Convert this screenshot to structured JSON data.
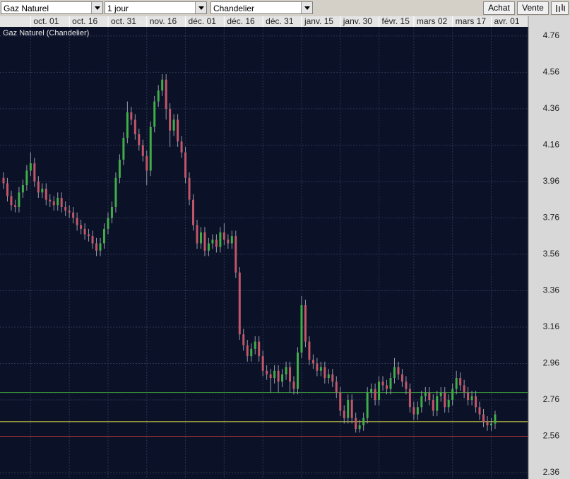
{
  "toolbar": {
    "instrument": "Gaz Naturel",
    "period": "1 jour",
    "chart_style": "Chandelier",
    "buy": "Achat",
    "sell": "Vente"
  },
  "chart_data": {
    "type": "candlestick",
    "title": "Gaz Naturel (Chandelier)",
    "categories": [
      null,
      null,
      null,
      null,
      null,
      null,
      null,
      "oct. 01",
      null,
      null,
      null,
      null,
      null,
      null,
      null,
      null,
      null,
      "oct. 16",
      null,
      null,
      null,
      null,
      null,
      null,
      null,
      null,
      null,
      "oct. 31",
      null,
      null,
      null,
      null,
      null,
      null,
      null,
      null,
      null,
      "nov. 16",
      null,
      null,
      null,
      null,
      null,
      null,
      null,
      null,
      null,
      "déc. 01",
      null,
      null,
      null,
      null,
      null,
      null,
      null,
      null,
      null,
      "déc. 16",
      null,
      null,
      null,
      null,
      null,
      null,
      null,
      null,
      null,
      "déc. 31",
      null,
      null,
      null,
      null,
      null,
      null,
      null,
      null,
      null,
      "janv. 15",
      null,
      null,
      null,
      null,
      null,
      null,
      null,
      null,
      null,
      "janv. 30",
      null,
      null,
      null,
      null,
      null,
      null,
      null,
      null,
      null,
      "févr. 15",
      null,
      null,
      null,
      null,
      null,
      null,
      null,
      null,
      "mars 02",
      null,
      null,
      null,
      null,
      null,
      null,
      null,
      null,
      null,
      "mars 17",
      null,
      null,
      null,
      null,
      null,
      null,
      null,
      null,
      null,
      "avr. 01",
      null
    ],
    "open": [
      3.98,
      3.95,
      3.88,
      3.83,
      3.82,
      3.9,
      3.94,
      4.02,
      4.06,
      3.96,
      3.9,
      3.92,
      3.86,
      3.85,
      3.83,
      3.87,
      3.82,
      3.8,
      3.79,
      3.76,
      3.72,
      3.7,
      3.67,
      3.66,
      3.62,
      3.58,
      3.62,
      3.7,
      3.76,
      3.82,
      3.98,
      4.08,
      4.2,
      4.34,
      4.3,
      4.22,
      4.16,
      4.1,
      4.02,
      4.26,
      4.4,
      4.46,
      4.52,
      4.36,
      4.24,
      4.3,
      4.18,
      4.12,
      3.98,
      3.86,
      3.72,
      3.62,
      3.68,
      3.58,
      3.62,
      3.64,
      3.6,
      3.68,
      3.64,
      3.62,
      3.66,
      3.46,
      3.12,
      3.06,
      3.0,
      3.04,
      3.08,
      3.0,
      2.92,
      2.9,
      2.88,
      2.92,
      2.86,
      2.9,
      2.94,
      2.86,
      2.82,
      3.02,
      3.28,
      3.08,
      2.98,
      2.96,
      2.92,
      2.94,
      2.88,
      2.9,
      2.86,
      2.8,
      2.7,
      2.66,
      2.76,
      2.66,
      2.6,
      2.62,
      2.66,
      2.8,
      2.82,
      2.76,
      2.86,
      2.84,
      2.82,
      2.88,
      2.94,
      2.9,
      2.86,
      2.82,
      2.72,
      2.68,
      2.72,
      2.78,
      2.8,
      2.76,
      2.7,
      2.78,
      2.8,
      2.72,
      2.76,
      2.82,
      2.88,
      2.84,
      2.8,
      2.76,
      2.78,
      2.72,
      2.68,
      2.64,
      2.62,
      2.63
    ],
    "high": [
      4.01,
      3.98,
      3.91,
      3.86,
      3.93,
      3.97,
      4.05,
      4.12,
      4.09,
      3.99,
      3.95,
      3.95,
      3.89,
      3.88,
      3.9,
      3.9,
      3.85,
      3.83,
      3.82,
      3.79,
      3.75,
      3.73,
      3.7,
      3.69,
      3.65,
      3.65,
      3.73,
      3.79,
      3.85,
      4.01,
      4.11,
      4.23,
      4.4,
      4.37,
      4.33,
      4.25,
      4.19,
      4.13,
      4.29,
      4.43,
      4.49,
      4.55,
      4.55,
      4.39,
      4.33,
      4.33,
      4.21,
      4.15,
      4.01,
      3.89,
      3.75,
      3.71,
      3.71,
      3.65,
      3.67,
      3.67,
      3.71,
      3.73,
      3.67,
      3.69,
      3.69,
      3.49,
      3.15,
      3.09,
      3.07,
      3.11,
      3.11,
      3.03,
      2.95,
      2.93,
      2.95,
      2.95,
      2.93,
      2.97,
      2.97,
      2.89,
      3.05,
      3.33,
      3.31,
      3.11,
      3.01,
      2.99,
      2.97,
      2.97,
      2.93,
      2.93,
      2.89,
      2.83,
      2.73,
      2.79,
      2.79,
      2.69,
      2.65,
      2.69,
      2.83,
      2.85,
      2.85,
      2.89,
      2.89,
      2.87,
      2.91,
      2.99,
      2.97,
      2.93,
      2.89,
      2.85,
      2.75,
      2.75,
      2.81,
      2.83,
      2.83,
      2.79,
      2.81,
      2.83,
      2.83,
      2.79,
      2.85,
      2.92,
      2.91,
      2.87,
      2.83,
      2.81,
      2.81,
      2.75,
      2.71,
      2.67,
      2.66,
      2.7
    ],
    "low": [
      3.92,
      3.85,
      3.8,
      3.79,
      3.79,
      3.87,
      3.91,
      3.99,
      3.93,
      3.87,
      3.87,
      3.83,
      3.82,
      3.8,
      3.8,
      3.79,
      3.77,
      3.76,
      3.73,
      3.69,
      3.67,
      3.64,
      3.63,
      3.59,
      3.55,
      3.55,
      3.59,
      3.67,
      3.73,
      3.79,
      3.95,
      4.05,
      4.17,
      4.27,
      4.19,
      4.13,
      4.07,
      3.94,
      3.99,
      4.23,
      4.37,
      4.43,
      4.3,
      4.15,
      4.21,
      4.15,
      4.09,
      3.95,
      3.83,
      3.69,
      3.59,
      3.59,
      3.55,
      3.55,
      3.59,
      3.57,
      3.57,
      3.61,
      3.59,
      3.59,
      3.43,
      3.09,
      3.03,
      2.97,
      2.97,
      3.01,
      2.97,
      2.89,
      2.87,
      2.8,
      2.85,
      2.8,
      2.83,
      2.87,
      2.8,
      2.79,
      2.79,
      2.99,
      3.05,
      2.95,
      2.93,
      2.89,
      2.89,
      2.85,
      2.85,
      2.83,
      2.77,
      2.67,
      2.63,
      2.63,
      2.63,
      2.58,
      2.58,
      2.59,
      2.63,
      2.77,
      2.73,
      2.73,
      2.81,
      2.79,
      2.79,
      2.85,
      2.87,
      2.83,
      2.79,
      2.69,
      2.65,
      2.65,
      2.69,
      2.75,
      2.73,
      2.67,
      2.67,
      2.75,
      2.69,
      2.69,
      2.73,
      2.79,
      2.81,
      2.77,
      2.73,
      2.73,
      2.69,
      2.65,
      2.61,
      2.59,
      2.59,
      2.6
    ],
    "close": [
      3.95,
      3.88,
      3.83,
      3.82,
      3.9,
      3.94,
      4.02,
      4.06,
      3.96,
      3.9,
      3.92,
      3.86,
      3.85,
      3.83,
      3.87,
      3.82,
      3.8,
      3.79,
      3.76,
      3.72,
      3.7,
      3.67,
      3.66,
      3.62,
      3.58,
      3.62,
      3.7,
      3.76,
      3.82,
      3.98,
      4.08,
      4.2,
      4.34,
      4.3,
      4.22,
      4.16,
      4.1,
      4.02,
      4.26,
      4.4,
      4.46,
      4.52,
      4.36,
      4.24,
      4.3,
      4.18,
      4.12,
      3.98,
      3.86,
      3.72,
      3.62,
      3.68,
      3.58,
      3.62,
      3.64,
      3.6,
      3.68,
      3.64,
      3.62,
      3.66,
      3.46,
      3.12,
      3.06,
      3.0,
      3.04,
      3.08,
      3.0,
      2.92,
      2.9,
      2.88,
      2.92,
      2.86,
      2.9,
      2.94,
      2.86,
      2.82,
      3.02,
      3.28,
      3.08,
      2.98,
      2.96,
      2.92,
      2.94,
      2.88,
      2.9,
      2.86,
      2.8,
      2.7,
      2.66,
      2.76,
      2.66,
      2.6,
      2.62,
      2.66,
      2.8,
      2.82,
      2.76,
      2.86,
      2.84,
      2.82,
      2.88,
      2.94,
      2.9,
      2.86,
      2.82,
      2.72,
      2.68,
      2.72,
      2.78,
      2.8,
      2.76,
      2.7,
      2.78,
      2.8,
      2.72,
      2.76,
      2.82,
      2.88,
      2.84,
      2.8,
      2.76,
      2.78,
      2.72,
      2.68,
      2.64,
      2.62,
      2.63,
      2.68
    ],
    "up_color": "#3fae49",
    "down_color": "#c2566a",
    "wick_color": "#9a9aa6",
    "ylim": [
      2.325,
      4.81
    ],
    "yticks": [
      2.36,
      2.56,
      2.76,
      2.96,
      3.16,
      3.36,
      3.56,
      3.76,
      3.96,
      4.16,
      4.36,
      4.56,
      4.76
    ],
    "grid": true,
    "hlines": [
      {
        "value": 2.8,
        "color": "#3c9a3c"
      },
      {
        "value": 2.64,
        "color": "#e2e24a"
      },
      {
        "value": 2.56,
        "color": "#b03434"
      }
    ]
  }
}
